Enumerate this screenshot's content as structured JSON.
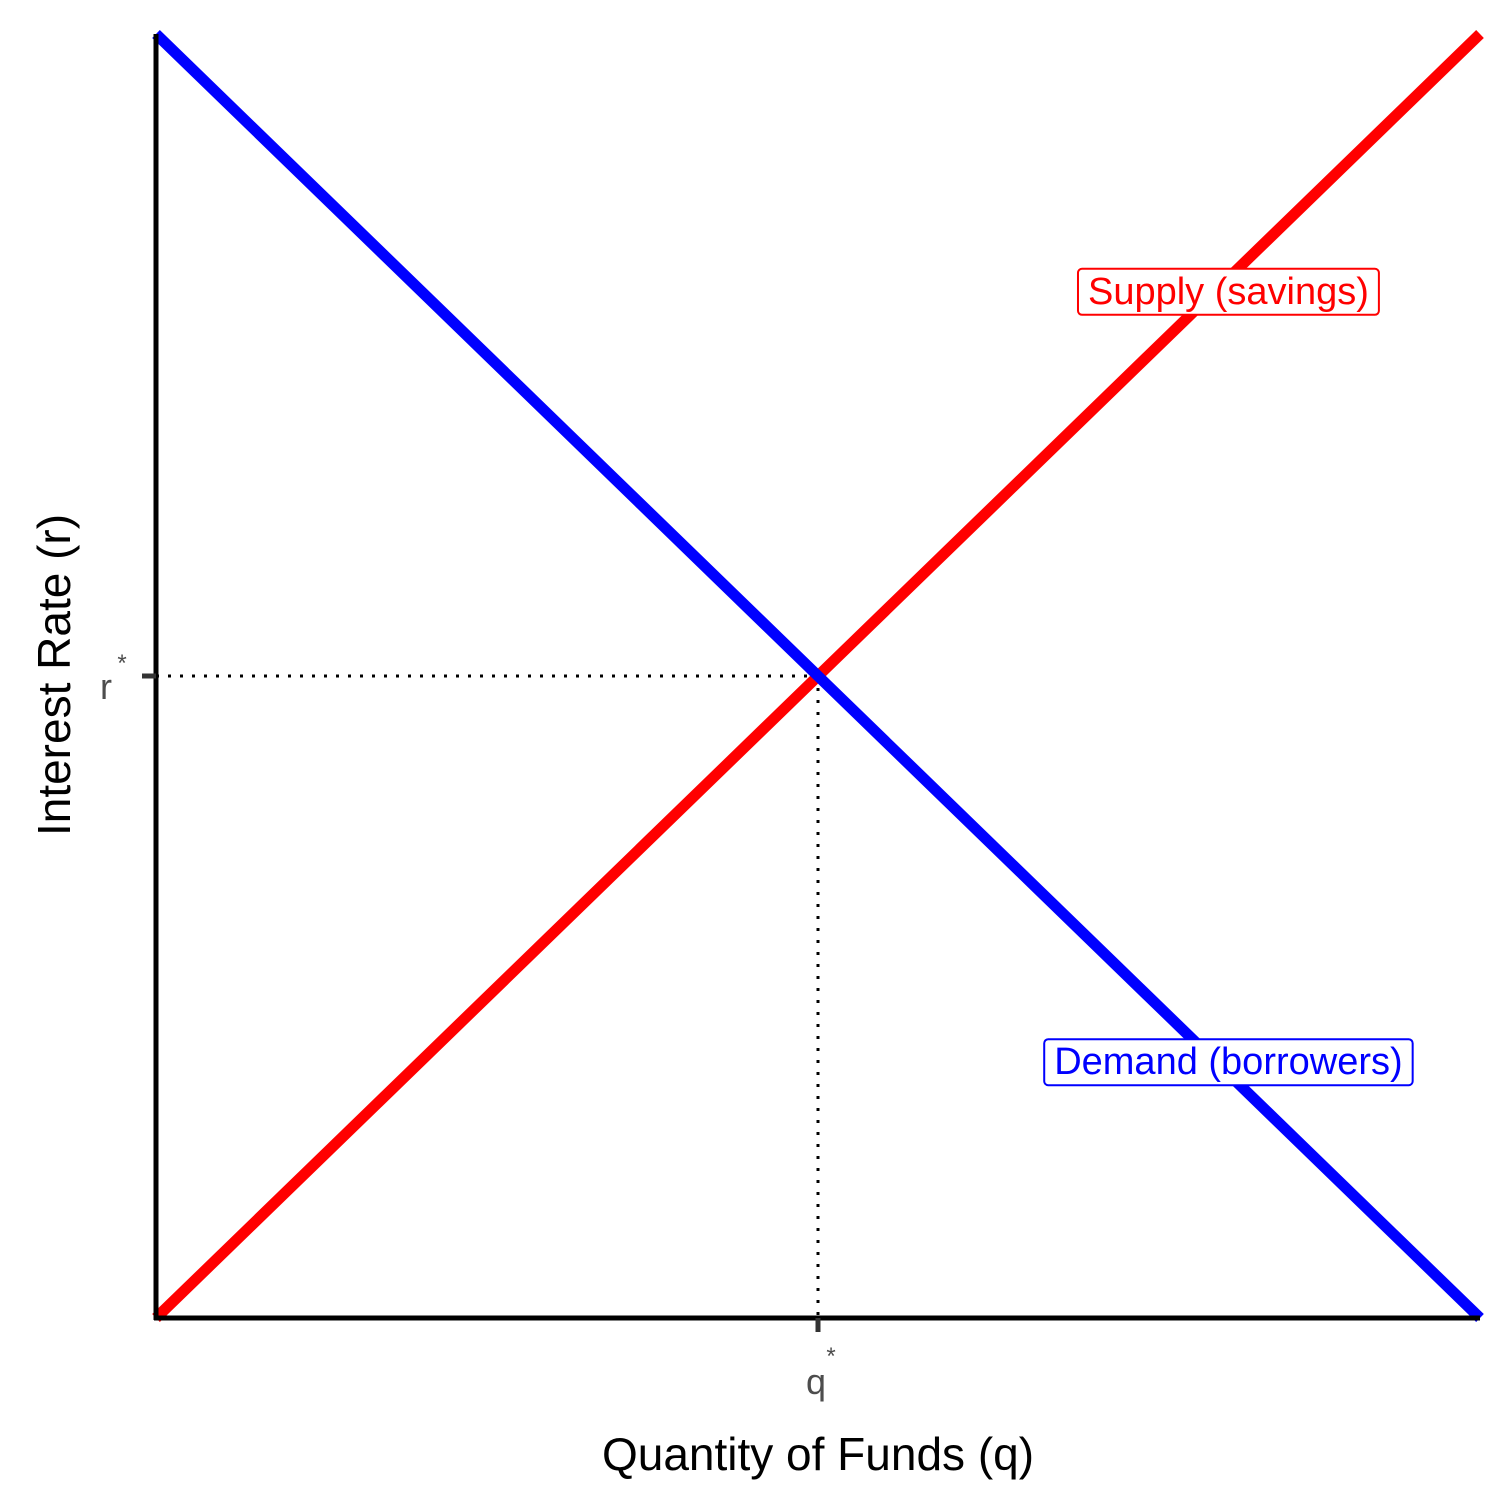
{
  "chart_data": {
    "type": "line",
    "title": "",
    "xlabel": "Quantity of Funds (q)",
    "ylabel": "Interest Rate (r)",
    "xlim": [
      0,
      10
    ],
    "ylim": [
      0,
      10
    ],
    "grid": false,
    "legend": "none",
    "series": [
      {
        "name": "Supply (savings)",
        "color": "#ff0000",
        "x": [
          0,
          10
        ],
        "y": [
          0,
          10
        ]
      },
      {
        "name": "Demand (borrowers)",
        "color": "#0000ff",
        "x": [
          0,
          10
        ],
        "y": [
          10,
          0
        ]
      }
    ],
    "equilibrium": {
      "x": 5,
      "y": 5
    },
    "x_ticks": [
      {
        "value": 5,
        "label": "q",
        "superscript": "*"
      }
    ],
    "y_ticks": [
      {
        "value": 5,
        "label": "r",
        "superscript": "*"
      }
    ],
    "annotations": [
      {
        "text": "Supply (savings)",
        "x": 8.1,
        "y": 8.0,
        "color": "#ff0000"
      },
      {
        "text": "Demand (borrowers)",
        "x": 8.1,
        "y": 2.0,
        "color": "#0000ff"
      }
    ]
  }
}
